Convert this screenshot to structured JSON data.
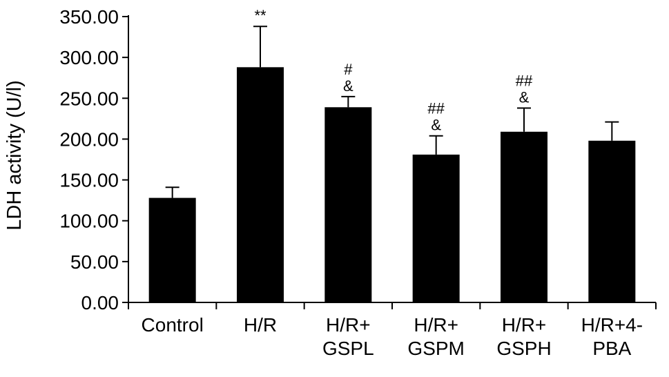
{
  "chart_data": {
    "type": "bar",
    "title": "",
    "xlabel": "",
    "ylabel": "LDH activity (U/l)",
    "ylim": [
      0,
      350
    ],
    "yticks": [
      "0.00",
      "50.00",
      "100.00",
      "150.00",
      "200.00",
      "250.00",
      "300.00",
      "350.00"
    ],
    "grid": false,
    "bar_color": "#000000",
    "categories": [
      [
        "Control"
      ],
      [
        "H/R"
      ],
      [
        "H/R+",
        "GSPL"
      ],
      [
        "H/R+",
        "GSPM"
      ],
      [
        "H/R+",
        "GSPH"
      ],
      [
        "H/R+4-",
        "PBA"
      ]
    ],
    "values": [
      128,
      288,
      239,
      181,
      209,
      198
    ],
    "errors": [
      13,
      50,
      13,
      23,
      29,
      23
    ],
    "annotations": [
      [],
      [
        "**"
      ],
      [
        "#",
        "&"
      ],
      [
        "##",
        "&"
      ],
      [
        "##",
        "&"
      ],
      []
    ]
  }
}
